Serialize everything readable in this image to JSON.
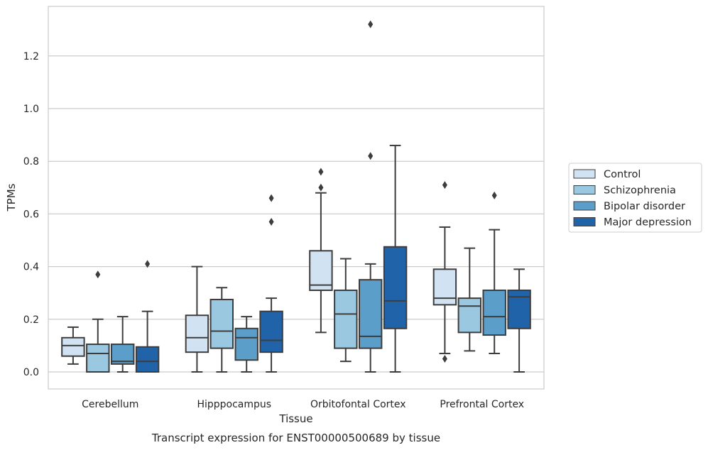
{
  "chart_data": {
    "type": "boxplot",
    "caption": "Transcript expression for ENST00000500689 by tissue",
    "xlabel": "Tissue",
    "ylabel": "TPMs",
    "ylim": [
      -0.065,
      1.39
    ],
    "yticks": [
      0.0,
      0.2,
      0.4,
      0.6,
      0.8,
      1.0,
      1.2
    ],
    "ytick_labels": [
      "0.0",
      "0.2",
      "0.4",
      "0.6",
      "0.8",
      "1.0",
      "1.2"
    ],
    "grid": "horizontal",
    "legend_position": "right",
    "categories": [
      "Cerebellum",
      "Hipppocampus",
      "Orbitofontal Cortex",
      "Prefrontal Cortex"
    ],
    "series": [
      {
        "name": "Control",
        "color": "#d1e2f2",
        "boxes": [
          {
            "whislo": 0.03,
            "q1": 0.06,
            "med": 0.1,
            "q3": 0.13,
            "whishi": 0.17,
            "fliers": []
          },
          {
            "whislo": 0.0,
            "q1": 0.075,
            "med": 0.13,
            "q3": 0.215,
            "whishi": 0.4,
            "fliers": []
          },
          {
            "whislo": 0.15,
            "q1": 0.31,
            "med": 0.33,
            "q3": 0.46,
            "whishi": 0.68,
            "fliers": [
              0.7,
              0.76
            ]
          },
          {
            "whislo": 0.07,
            "q1": 0.255,
            "med": 0.28,
            "q3": 0.39,
            "whishi": 0.55,
            "fliers": [
              0.05,
              0.71
            ]
          }
        ]
      },
      {
        "name": "Schizophrenia",
        "color": "#9ac8e0",
        "boxes": [
          {
            "whislo": 0.0,
            "q1": 0.0,
            "med": 0.07,
            "q3": 0.105,
            "whishi": 0.2,
            "fliers": [
              0.37
            ]
          },
          {
            "whislo": 0.0,
            "q1": 0.09,
            "med": 0.155,
            "q3": 0.275,
            "whishi": 0.32,
            "fliers": []
          },
          {
            "whislo": 0.04,
            "q1": 0.09,
            "med": 0.22,
            "q3": 0.31,
            "whishi": 0.43,
            "fliers": []
          },
          {
            "whislo": 0.08,
            "q1": 0.15,
            "med": 0.25,
            "q3": 0.28,
            "whishi": 0.47,
            "fliers": []
          }
        ]
      },
      {
        "name": "Bipolar disorder",
        "color": "#5a9ec9",
        "boxes": [
          {
            "whislo": 0.0,
            "q1": 0.03,
            "med": 0.04,
            "q3": 0.105,
            "whishi": 0.21,
            "fliers": []
          },
          {
            "whislo": 0.0,
            "q1": 0.045,
            "med": 0.13,
            "q3": 0.165,
            "whishi": 0.21,
            "fliers": []
          },
          {
            "whislo": 0.0,
            "q1": 0.09,
            "med": 0.135,
            "q3": 0.35,
            "whishi": 0.41,
            "fliers": [
              0.82,
              1.32
            ]
          },
          {
            "whislo": 0.07,
            "q1": 0.14,
            "med": 0.21,
            "q3": 0.31,
            "whishi": 0.54,
            "fliers": [
              0.67
            ]
          }
        ]
      },
      {
        "name": "Major depression",
        "color": "#2163a8",
        "boxes": [
          {
            "whislo": 0.0,
            "q1": 0.0,
            "med": 0.04,
            "q3": 0.095,
            "whishi": 0.23,
            "fliers": [
              0.41
            ]
          },
          {
            "whislo": 0.0,
            "q1": 0.075,
            "med": 0.12,
            "q3": 0.23,
            "whishi": 0.28,
            "fliers": [
              0.57,
              0.66
            ]
          },
          {
            "whislo": 0.0,
            "q1": 0.165,
            "med": 0.27,
            "q3": 0.475,
            "whishi": 0.86,
            "fliers": []
          },
          {
            "whislo": 0.0,
            "q1": 0.165,
            "med": 0.285,
            "q3": 0.31,
            "whishi": 0.39,
            "fliers": []
          }
        ]
      }
    ]
  }
}
